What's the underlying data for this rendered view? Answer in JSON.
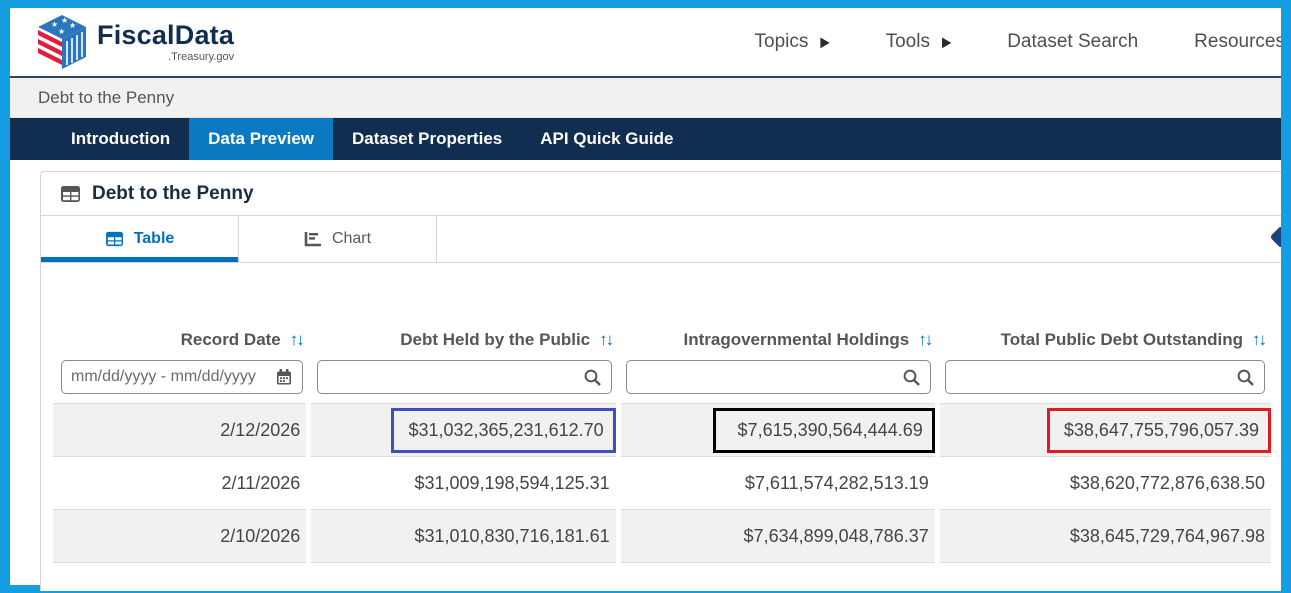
{
  "header": {
    "logo": {
      "title": "FiscalData",
      "subtitle": ".Treasury.gov"
    },
    "nav": [
      {
        "label": "Topics",
        "caret": "▶"
      },
      {
        "label": "Tools",
        "caret": "▶"
      },
      {
        "label": "Dataset Search",
        "caret": ""
      },
      {
        "label": "Resources",
        "caret": ""
      }
    ]
  },
  "breadcrumb": {
    "label": "Debt to the Penny"
  },
  "page_tabs": [
    {
      "label": "Introduction",
      "active": false
    },
    {
      "label": "Data Preview",
      "active": true
    },
    {
      "label": "Dataset Properties",
      "active": false
    },
    {
      "label": "API Quick Guide",
      "active": false
    }
  ],
  "dataset": {
    "title": "Debt to the Penny"
  },
  "view_tabs": [
    {
      "label": "Table",
      "active": true
    },
    {
      "label": "Chart",
      "active": false
    }
  ],
  "table": {
    "sort_icon": "↑↓",
    "columns": [
      {
        "label": "Record Date",
        "filter_placeholder": "mm/dd/yyyy - mm/dd/yyyy",
        "filter_icon": "calendar-icon"
      },
      {
        "label": "Debt Held by the Public",
        "filter_placeholder": "",
        "filter_icon": "search-icon"
      },
      {
        "label": "Intragovernmental Holdings",
        "filter_placeholder": "",
        "filter_icon": "search-icon"
      },
      {
        "label": "Total Public Debt Outstanding",
        "filter_placeholder": "",
        "filter_icon": "search-icon"
      }
    ],
    "rows": [
      {
        "record_date": "2/12/2026",
        "debt_held_by_public": "$31,032,365,231,612.70",
        "intragovernmental_holdings": "$7,615,390,564,444.69",
        "total_public_debt_outstanding": "$38,647,755,796,057.39",
        "striped": true,
        "highlights": {
          "debt_held_by_public": "#3f4fc1",
          "intragovernmental_holdings": "#000000",
          "total_public_debt_outstanding": "#e11b22"
        }
      },
      {
        "record_date": "2/11/2026",
        "debt_held_by_public": "$31,009,198,594,125.31",
        "intragovernmental_holdings": "$7,611,574,282,513.19",
        "total_public_debt_outstanding": "$38,620,772,876,638.50",
        "striped": false,
        "highlights": {}
      },
      {
        "record_date": "2/10/2026",
        "debt_held_by_public": "$31,010,830,716,181.61",
        "intragovernmental_holdings": "$7,634,899,048,786.37",
        "total_public_debt_outstanding": "$38,645,729,764,967.98",
        "striped": true,
        "highlights": {}
      }
    ]
  },
  "colors": {
    "frame_border": "#149de0",
    "navy": "#112e51",
    "active_page_tab": "#0a79c2",
    "accent_blue": "#0071bc",
    "stripe_gray": "#f1f1f1",
    "highlight_blue": "#3f4fc1",
    "highlight_black": "#000000",
    "highlight_red": "#e11b22"
  }
}
